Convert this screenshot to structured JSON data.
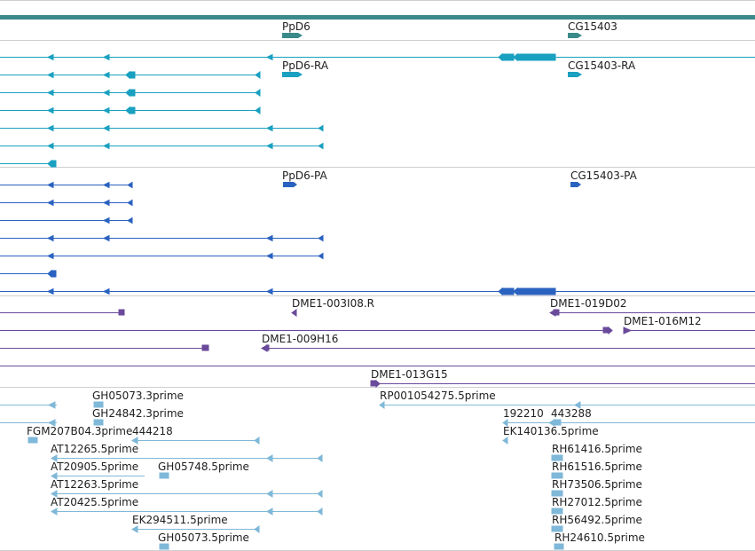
{
  "track_colors": {
    "gene": "#3a8a8a",
    "transcript": "#1aa0c0",
    "protein": "#2a62c0",
    "clone": "#6a4a9a",
    "est": "#7fb8d8",
    "separator": "#cfcfcf",
    "label": "#202020"
  },
  "genes": {
    "ppd6": "PpD6",
    "cg15403": "CG15403"
  },
  "transcripts": {
    "ppd6_ra": "PpD6-RA",
    "cg15403_ra": "CG15403-RA"
  },
  "proteins": {
    "ppd6_pa": "PpD6-PA",
    "cg15403_pa": "CG15403-PA"
  },
  "clones": {
    "dme1_003i08": "DME1-003I08.R",
    "dme1_019d02": "DME1-019D02",
    "dme1_016m12": "DME1-016M12",
    "dme1_009h16": "DME1-009H16",
    "dme1_013g15": "DME1-013G15"
  },
  "ests": {
    "gh05073_3": "GH05073.3prime",
    "rp001054275": "RP001054275.5prime",
    "gh24842_3": "GH24842.3prime",
    "e192210": "192210",
    "e443288": "443288",
    "fgm207b04": "FGM207B04.3prime",
    "e444218": "444218",
    "ek140136": "EK140136.5prime",
    "at12265": "AT12265.5prime",
    "rh61416": "RH61416.5prime",
    "at20905": "AT20905.5prime",
    "gh05748": "GH05748.5prime",
    "rh61516": "RH61516.5prime",
    "at12263": "AT12263.5prime",
    "rh73506": "RH73506.5prime",
    "at20425": "AT20425.5prime",
    "rh27012": "RH27012.5prime",
    "ek294511": "EK294511.5prime",
    "rh56492": "RH56492.5prime",
    "gh05073_5": "GH05073.5prime",
    "rh24610": "RH24610.5prime"
  }
}
